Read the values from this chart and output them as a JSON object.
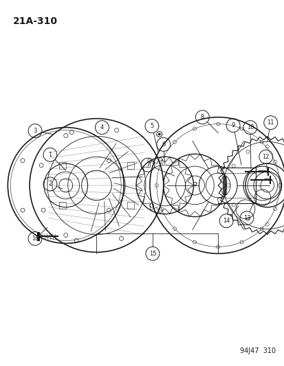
{
  "title": "21A-310",
  "footer": "94J47  310",
  "bg_color": "#ffffff",
  "line_color": "#1a1a1a",
  "fig_w": 4.14,
  "fig_h": 5.33,
  "dpi": 100,
  "xlim": [
    0,
    414
  ],
  "ylim": [
    0,
    533
  ]
}
